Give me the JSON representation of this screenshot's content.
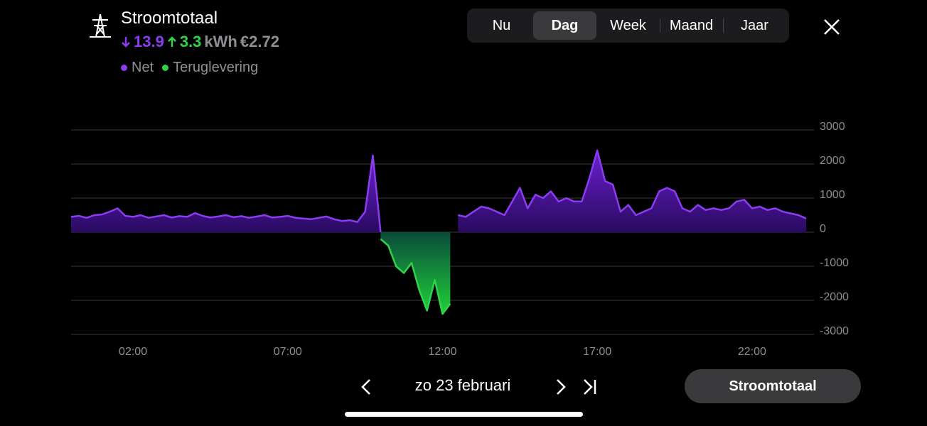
{
  "header": {
    "title": "Stroomtotaal",
    "import": 13.9,
    "export": 3.3,
    "unit": "kWh",
    "cost": "€2.72"
  },
  "tabs": [
    "Nu",
    "Dag",
    "Week",
    "Maand",
    "Jaar"
  ],
  "active_tab": 1,
  "date": "zo 23 februari",
  "button": "Stroomtotaal",
  "chart_data": {
    "type": "area",
    "x": [
      0,
      0.25,
      0.5,
      0.75,
      1,
      1.25,
      1.5,
      1.75,
      2,
      2.25,
      2.5,
      2.75,
      3,
      3.25,
      3.5,
      3.75,
      4,
      4.25,
      4.5,
      4.75,
      5,
      5.25,
      5.5,
      5.75,
      6,
      6.25,
      6.5,
      6.75,
      7,
      7.25,
      7.5,
      7.75,
      8,
      8.25,
      8.5,
      8.75,
      9,
      9.25,
      9.5,
      9.75,
      10,
      10.25,
      10.5,
      10.75,
      11,
      11.25,
      11.5,
      11.75,
      12,
      12.25,
      12.5,
      12.75,
      13,
      13.25,
      13.5,
      13.75,
      14,
      14.25,
      14.5,
      14.75,
      15,
      15.25,
      15.5,
      15.75,
      16,
      16.25,
      16.5,
      16.75,
      17,
      17.25,
      17.5,
      17.75,
      18,
      18.25,
      18.5,
      18.75,
      19,
      19.25,
      19.5,
      19.75,
      20,
      20.25,
      20.5,
      20.75,
      21,
      21.25,
      21.5,
      21.75,
      22,
      22.25,
      22.5,
      22.75,
      23,
      23.25,
      23.5,
      23.75
    ],
    "series": [
      {
        "name": "Net",
        "color": "#8a3cf0",
        "values": [
          450,
          480,
          420,
          500,
          520,
          600,
          700,
          480,
          450,
          500,
          420,
          460,
          500,
          430,
          470,
          450,
          560,
          480,
          430,
          460,
          500,
          440,
          470,
          420,
          460,
          500,
          430,
          450,
          480,
          420,
          400,
          380,
          420,
          460,
          380,
          330,
          350,
          300,
          600,
          2250,
          0,
          null,
          null,
          null,
          null,
          null,
          null,
          null,
          null,
          null,
          500,
          450,
          600,
          750,
          700,
          600,
          500,
          900,
          1300,
          700,
          1100,
          1000,
          1200,
          900,
          1000,
          900,
          900,
          1600,
          2400,
          1500,
          1400,
          600,
          800,
          500,
          600,
          700,
          1200,
          1300,
          1200,
          700,
          600,
          800,
          650,
          700,
          650,
          700,
          900,
          950,
          700,
          750,
          650,
          700,
          600,
          550,
          500,
          400
        ]
      },
      {
        "name": "Teruglevering",
        "color": "#2fd24a",
        "values": [
          null,
          null,
          null,
          null,
          null,
          null,
          null,
          null,
          null,
          null,
          null,
          null,
          null,
          null,
          null,
          null,
          null,
          null,
          null,
          null,
          null,
          null,
          null,
          null,
          null,
          null,
          null,
          null,
          null,
          null,
          null,
          null,
          null,
          null,
          null,
          null,
          null,
          null,
          null,
          null,
          -200,
          -400,
          -1000,
          -1200,
          -900,
          -1700,
          -2300,
          -1400,
          -2400,
          -2100,
          null,
          null,
          null,
          null,
          null,
          null,
          null,
          null,
          null,
          null,
          null,
          null,
          null,
          null,
          null,
          null,
          null,
          null,
          null,
          null,
          null,
          null,
          null,
          null,
          null,
          null,
          null,
          null,
          null,
          null,
          null,
          null,
          null,
          null,
          null,
          null,
          null,
          null,
          null,
          null,
          null,
          null,
          null,
          null,
          null,
          null
        ]
      }
    ],
    "xlim": [
      0,
      24
    ],
    "xticks": [
      {
        "value": 2,
        "label": "02:00"
      },
      {
        "value": 7,
        "label": "07:00"
      },
      {
        "value": 12,
        "label": "12:00"
      },
      {
        "value": 17,
        "label": "17:00"
      },
      {
        "value": 22,
        "label": "22:00"
      }
    ],
    "ylim": [
      -3000,
      3000
    ],
    "yticks": [
      -3000,
      -2000,
      -1000,
      0,
      1000,
      2000,
      3000
    ],
    "grid": true
  }
}
